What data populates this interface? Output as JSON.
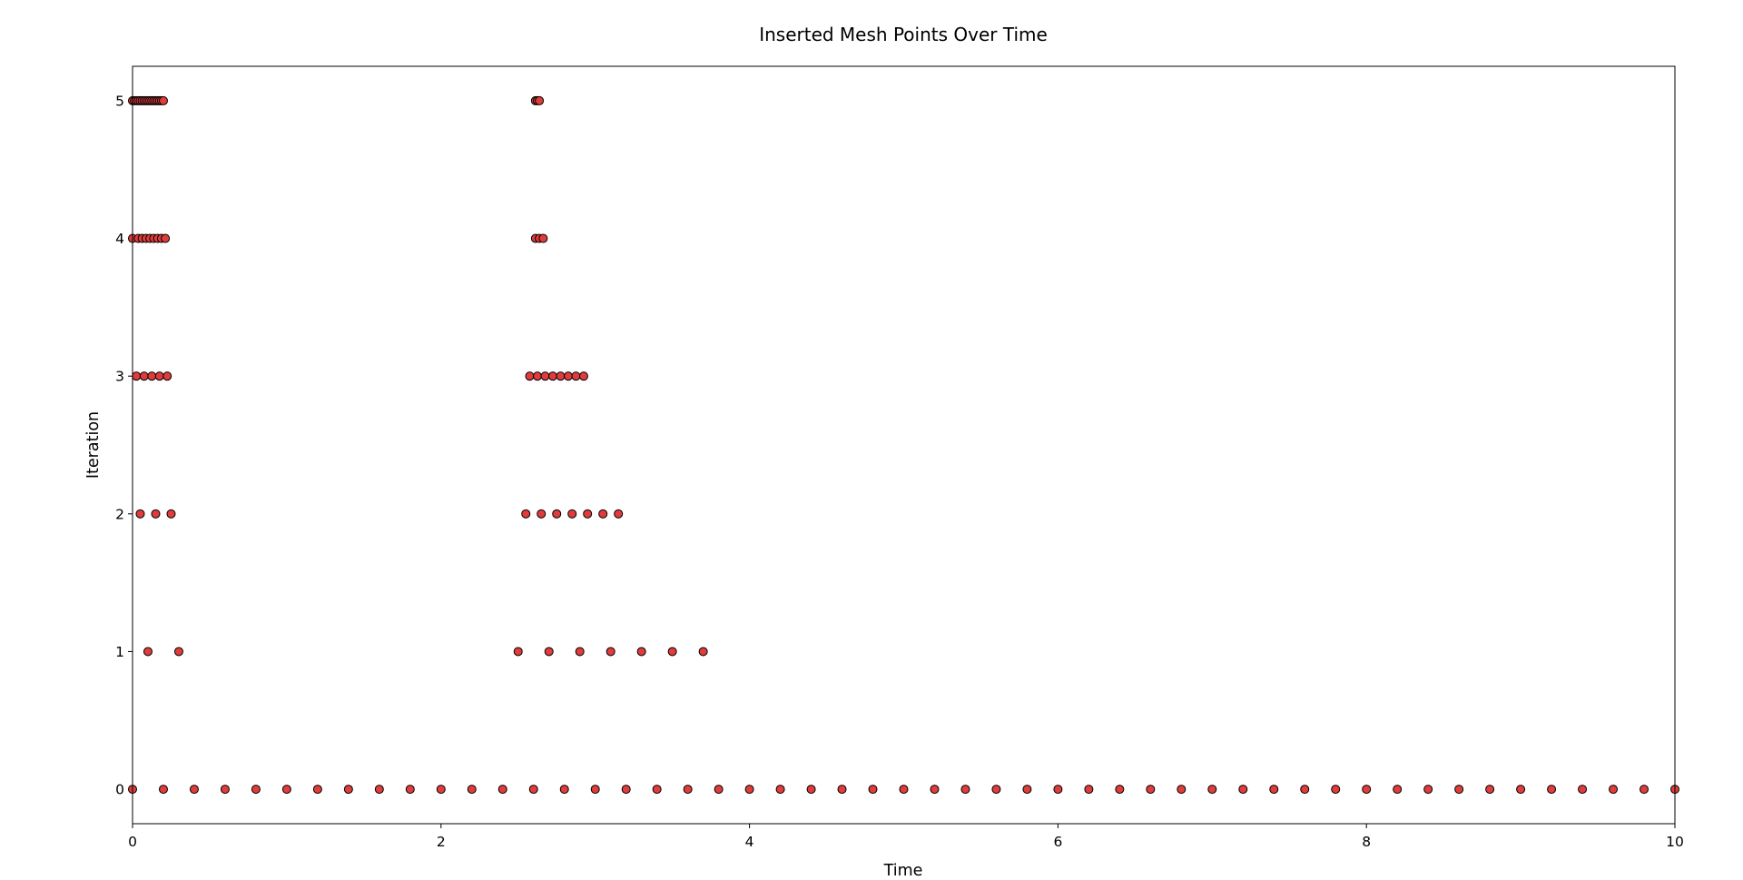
{
  "chart_data": {
    "type": "scatter",
    "title": "Inserted Mesh Points Over Time",
    "xlabel": "Time",
    "ylabel": "Iteration",
    "xlim": [
      0,
      10
    ],
    "ylim": [
      -0.25,
      5.25
    ],
    "xticks": [
      0,
      2,
      4,
      6,
      8,
      10
    ],
    "yticks": [
      0,
      1,
      2,
      3,
      4,
      5
    ],
    "grid": false,
    "marker_color": "#e03c3c",
    "marker_edge_color": "#000000",
    "series": [
      {
        "values": [
          {
            "y": 0,
            "x": [
              0,
              0.2,
              0.4,
              0.6,
              0.8,
              1.0,
              1.2,
              1.4,
              1.6,
              1.8,
              2.0,
              2.2,
              2.4,
              2.6,
              2.8,
              3.0,
              3.2,
              3.4,
              3.6,
              3.8,
              4.0,
              4.2,
              4.4,
              4.6,
              4.8,
              5.0,
              5.2,
              5.4,
              5.6,
              5.8,
              6.0,
              6.2,
              6.4,
              6.6,
              6.8,
              7.0,
              7.2,
              7.4,
              7.6,
              7.8,
              8.0,
              8.2,
              8.4,
              8.6,
              8.8,
              9.0,
              9.2,
              9.4,
              9.6,
              9.8,
              10.0
            ]
          },
          {
            "y": 1,
            "x": [
              0.1,
              0.3,
              2.5,
              2.7,
              2.9,
              3.1,
              3.3,
              3.5,
              3.7
            ]
          },
          {
            "y": 2,
            "x": [
              0.05,
              0.15,
              0.25,
              2.55,
              2.65,
              2.75,
              2.85,
              2.95,
              3.05,
              3.15
            ]
          },
          {
            "y": 3,
            "x": [
              0.025,
              0.075,
              0.125,
              0.175,
              0.225,
              2.575,
              2.625,
              2.675,
              2.725,
              2.775,
              2.825,
              2.875,
              2.925
            ]
          },
          {
            "y": 4,
            "x": [
              0.0,
              0.0375,
              0.0625,
              0.0875,
              0.1125,
              0.1375,
              0.1625,
              0.1875,
              0.2125,
              2.6125,
              2.6375,
              2.6625
            ]
          },
          {
            "y": 5,
            "x": [
              0.0,
              0.0125,
              0.025,
              0.0375,
              0.05,
              0.0625,
              0.075,
              0.0875,
              0.1,
              0.1125,
              0.125,
              0.1375,
              0.15,
              0.1625,
              0.175,
              0.1875,
              0.2,
              2.6125,
              2.625,
              2.6375
            ]
          }
        ]
      }
    ]
  }
}
